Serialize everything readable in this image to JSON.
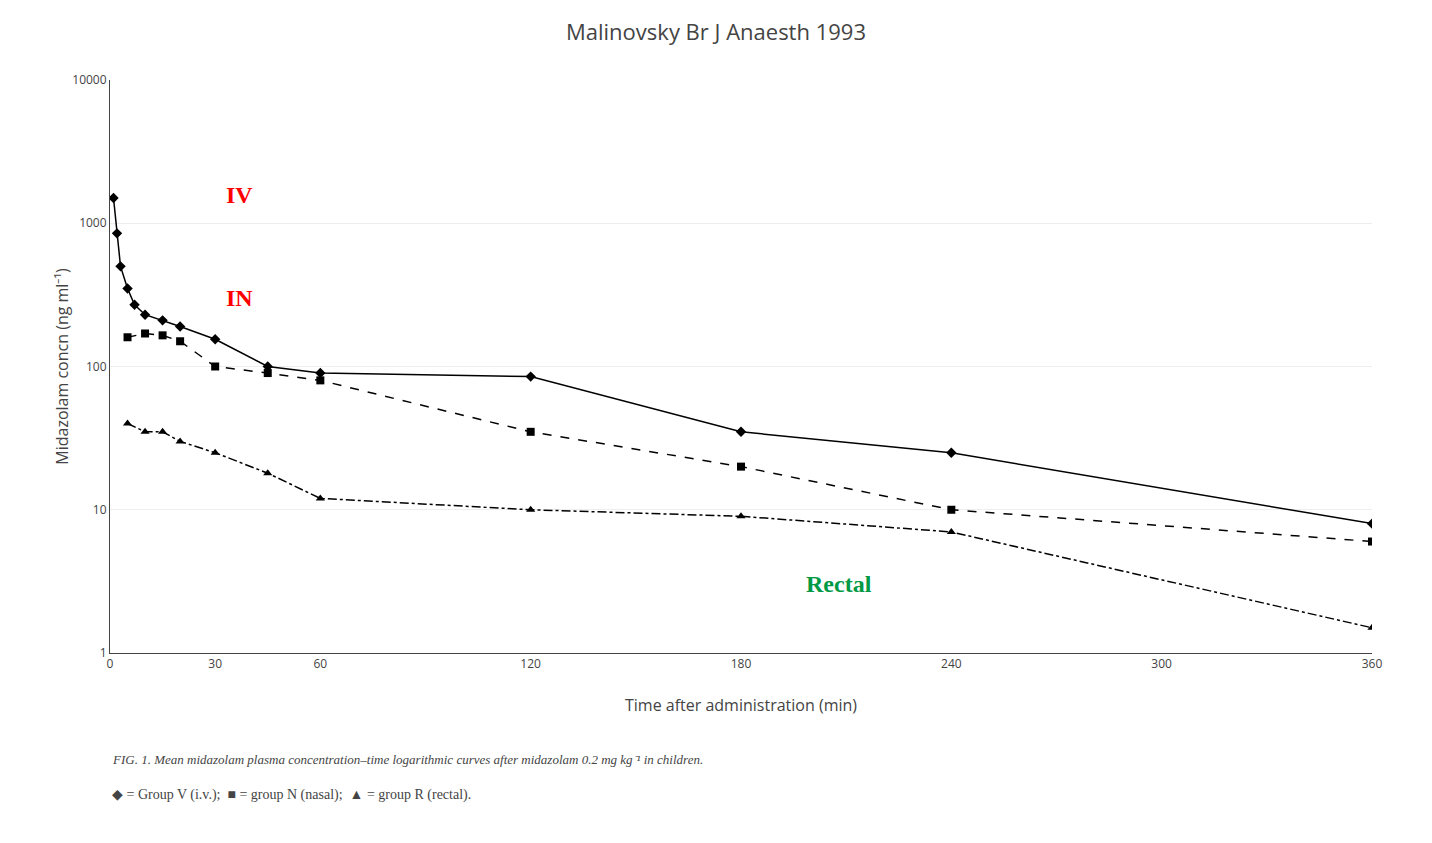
{
  "chart_data": {
    "type": "line",
    "title": "Malinovsky Br J Anaesth 1993",
    "x_label": "Time after administration (min)",
    "y_label": "Midazolam concn (ng ml⁻¹)",
    "log": "y",
    "grid": true,
    "xlim": [
      0,
      360
    ],
    "xticks": [
      0,
      30,
      60,
      120,
      180,
      240,
      300,
      360
    ],
    "ylim": [
      1,
      10000
    ],
    "yticks": [
      1,
      10,
      100,
      1000,
      10000
    ],
    "series": [
      {
        "color": "black",
        "marker": "diamond",
        "line_style": "solid",
        "x": [
          1,
          2,
          3,
          5,
          7,
          10,
          15,
          20,
          30,
          45,
          60,
          120,
          180,
          240,
          360
        ],
        "values": [
          1500,
          850,
          500,
          350,
          270,
          230,
          210,
          190,
          155,
          100,
          90,
          85,
          35,
          25,
          8
        ]
      },
      {
        "color": "black",
        "marker": "square",
        "line_style": "dash",
        "x": [
          5,
          10,
          15,
          20,
          30,
          45,
          60,
          120,
          180,
          240,
          360
        ],
        "values": [
          160,
          170,
          165,
          150,
          100,
          90,
          80,
          35,
          20,
          10,
          6
        ]
      },
      {
        "color": "black",
        "marker": "triangle-up",
        "line_style": "dashdot",
        "x": [
          5,
          10,
          15,
          20,
          30,
          45,
          60,
          120,
          180,
          240,
          360
        ],
        "values": [
          40,
          35,
          35,
          30,
          25,
          18,
          12,
          10,
          9,
          7,
          1.5
        ]
      }
    ],
    "annotations": [
      {
        "text": "IV",
        "color": "red"
      },
      {
        "text": "IN",
        "color": "red"
      },
      {
        "text": "Rectal",
        "color": "#009944"
      },
      {
        "text": "FIG. 1. Mean midazolam plasma concentration–time logarithmic curves after midazolam 0.2 mg kg⁻¹ in children."
      },
      {
        "text": "◆ = Group V (i.v.);  ■ = group N (nasal);  ▲ = group R (rectal)."
      }
    ]
  }
}
